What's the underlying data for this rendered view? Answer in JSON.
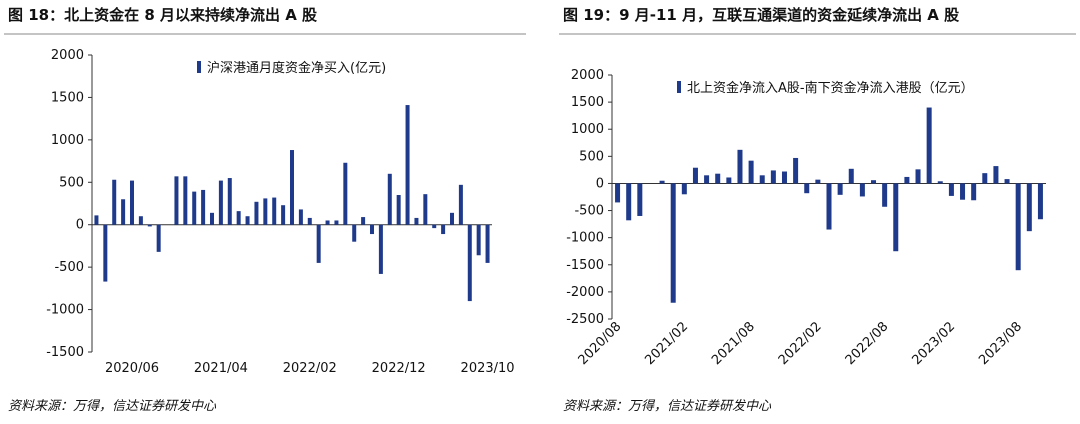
{
  "chart_data": [
    {
      "type": "bar",
      "title": "图 18：北上资金在 8 月以来持续净流出 A 股",
      "source": "资料来源：万得，信达证券研发中心",
      "categories": [
        null,
        null,
        null,
        null,
        "2020/06",
        null,
        null,
        null,
        null,
        null,
        null,
        null,
        null,
        null,
        "2021/04",
        null,
        null,
        null,
        null,
        null,
        null,
        null,
        null,
        null,
        "2022/02",
        null,
        null,
        null,
        null,
        null,
        null,
        null,
        null,
        null,
        "2022/12",
        null,
        null,
        null,
        null,
        null,
        null,
        null,
        null,
        null,
        "2023/10"
      ],
      "series": [
        {
          "name": "沪深港通月度资金净买入(亿元)",
          "color": "#1f3a8a",
          "values": [
            110,
            -670,
            530,
            300,
            520,
            100,
            -20,
            -320,
            0,
            570,
            570,
            390,
            410,
            140,
            520,
            550,
            160,
            100,
            270,
            310,
            320,
            230,
            880,
            180,
            80,
            -450,
            50,
            50,
            730,
            -200,
            90,
            -110,
            -580,
            600,
            350,
            1410,
            80,
            360,
            -40,
            -110,
            140,
            470,
            -900,
            -360,
            -450
          ]
        }
      ],
      "ylim": [
        -1500,
        2000
      ],
      "yticks": [
        -1500,
        -1000,
        -500,
        0,
        500,
        1000,
        1500,
        2000
      ],
      "legend": "top-left"
    },
    {
      "type": "bar",
      "title": "图 19：9 月-11 月，互联互通渠道的资金延续净流出 A 股",
      "source": "资料来源：万得，信达证券研发中心",
      "categories": [
        "2020/08",
        null,
        null,
        null,
        null,
        null,
        "2021/02",
        null,
        null,
        null,
        null,
        null,
        "2021/08",
        null,
        null,
        null,
        null,
        null,
        "2022/02",
        null,
        null,
        null,
        null,
        null,
        "2022/08",
        null,
        null,
        null,
        null,
        null,
        "2023/02",
        null,
        null,
        null,
        null,
        null,
        "2023/08",
        null,
        null
      ],
      "series": [
        {
          "name": "北上资金净流入A股-南下资金净流入港股（亿元）",
          "color": "#1f3a8a",
          "values": [
            -350,
            -680,
            -600,
            0,
            50,
            -2200,
            -200,
            290,
            150,
            180,
            110,
            620,
            420,
            150,
            240,
            220,
            470,
            -180,
            70,
            -850,
            -210,
            270,
            -240,
            60,
            -430,
            -1250,
            120,
            260,
            1400,
            40,
            -230,
            -300,
            -310,
            190,
            320,
            80,
            -1600,
            -880,
            -660
          ]
        }
      ],
      "ylim": [
        -2500,
        2000
      ],
      "yticks": [
        -2500,
        -2000,
        -1500,
        -1000,
        -500,
        0,
        500,
        1000,
        1500,
        2000
      ],
      "legend": "top-left"
    }
  ]
}
